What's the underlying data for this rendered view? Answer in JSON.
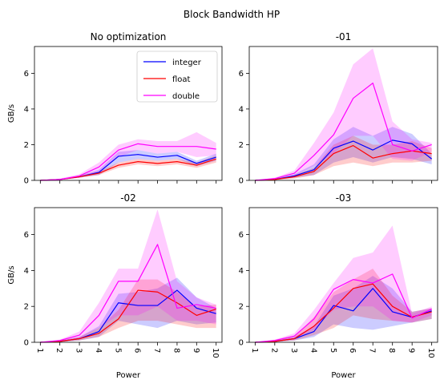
{
  "figure": {
    "suptitle": "Block Bandwidth HP"
  },
  "colors": {
    "integer": "#0000ff",
    "float": "#ff0000",
    "double": "#ff00ff"
  },
  "legend": {
    "placement": "top-right",
    "entries": [
      "integer",
      "float",
      "double"
    ]
  },
  "chart_data": [
    {
      "type": "line",
      "title": "No optimization",
      "xlabel": "",
      "ylabel": "GB/s",
      "x": [
        1,
        2,
        3,
        4,
        5,
        6,
        7,
        8,
        9,
        10
      ],
      "ylim": [
        0,
        7.5
      ],
      "yticks": [
        0,
        2,
        4,
        6
      ],
      "legend": true,
      "series": [
        {
          "name": "integer",
          "values": [
            0,
            0.05,
            0.2,
            0.45,
            1.35,
            1.45,
            1.3,
            1.4,
            0.95,
            1.3
          ],
          "lower": [
            0,
            0.02,
            0.15,
            0.3,
            1.0,
            1.2,
            1.1,
            1.2,
            0.8,
            1.1
          ],
          "upper": [
            0,
            0.08,
            0.25,
            0.6,
            1.6,
            1.7,
            1.5,
            1.6,
            1.1,
            1.5
          ]
        },
        {
          "name": "float",
          "values": [
            0,
            0.05,
            0.2,
            0.4,
            0.85,
            1.05,
            0.95,
            1.05,
            0.85,
            1.2
          ],
          "lower": [
            0,
            0.02,
            0.15,
            0.3,
            0.7,
            0.9,
            0.8,
            0.9,
            0.7,
            1.0
          ],
          "upper": [
            0,
            0.08,
            0.25,
            0.5,
            1.0,
            1.2,
            1.1,
            1.2,
            1.0,
            1.4
          ]
        },
        {
          "name": "double",
          "values": [
            0,
            0.05,
            0.25,
            0.75,
            1.7,
            2.05,
            1.9,
            1.9,
            1.9,
            1.75
          ],
          "lower": [
            0,
            0.02,
            0.15,
            0.5,
            1.3,
            1.7,
            1.5,
            1.6,
            1.3,
            1.4
          ],
          "upper": [
            0,
            0.1,
            0.35,
            1.0,
            2.0,
            2.3,
            2.2,
            2.2,
            2.7,
            2.1
          ]
        }
      ]
    },
    {
      "type": "line",
      "title": "-01",
      "xlabel": "",
      "ylabel": "",
      "x": [
        1,
        2,
        3,
        4,
        5,
        6,
        7,
        8,
        9,
        10
      ],
      "ylim": [
        0,
        7.5
      ],
      "yticks": [
        0,
        2,
        4,
        6
      ],
      "legend": false,
      "series": [
        {
          "name": "integer",
          "values": [
            0,
            0.05,
            0.25,
            0.6,
            1.8,
            2.2,
            1.7,
            2.25,
            2.05,
            1.2
          ],
          "lower": [
            0,
            0.02,
            0.15,
            0.3,
            1.0,
            1.3,
            1.0,
            1.3,
            1.2,
            0.9
          ],
          "upper": [
            0,
            0.1,
            0.35,
            0.9,
            2.3,
            3.0,
            2.5,
            3.0,
            2.6,
            1.5
          ]
        },
        {
          "name": "float",
          "values": [
            0,
            0.05,
            0.2,
            0.5,
            1.5,
            1.95,
            1.25,
            1.5,
            1.65,
            1.5
          ],
          "lower": [
            0,
            0.02,
            0.1,
            0.3,
            0.8,
            1.0,
            0.8,
            1.0,
            1.0,
            1.1
          ],
          "upper": [
            0,
            0.08,
            0.3,
            0.7,
            2.0,
            2.5,
            2.0,
            2.0,
            2.2,
            1.8
          ]
        },
        {
          "name": "double",
          "values": [
            0,
            0.1,
            0.4,
            1.4,
            2.55,
            4.6,
            5.45,
            2.0,
            1.65,
            2.0
          ],
          "lower": [
            0,
            0.05,
            0.25,
            0.8,
            1.5,
            2.5,
            2.5,
            1.2,
            1.1,
            1.6
          ],
          "upper": [
            0,
            0.15,
            0.55,
            2.1,
            3.8,
            6.5,
            7.4,
            3.3,
            2.3,
            2.1
          ]
        }
      ]
    },
    {
      "type": "line",
      "title": "-02",
      "xlabel": "Power",
      "ylabel": "GB/s",
      "x": [
        1,
        2,
        3,
        4,
        5,
        6,
        7,
        8,
        9,
        10
      ],
      "xticklabels": [
        "1",
        "2",
        "3",
        "4",
        "5",
        "6",
        "7",
        "8",
        "9",
        "10"
      ],
      "ylim": [
        0,
        7.5
      ],
      "yticks": [
        0,
        2,
        4,
        6
      ],
      "legend": false,
      "series": [
        {
          "name": "integer",
          "values": [
            0,
            0.05,
            0.2,
            0.6,
            2.2,
            2.05,
            2.05,
            2.9,
            1.9,
            1.6
          ],
          "lower": [
            0,
            0.02,
            0.1,
            0.3,
            1.2,
            1.0,
            0.8,
            1.2,
            1.0,
            1.1
          ],
          "upper": [
            0,
            0.1,
            0.3,
            0.9,
            2.7,
            2.8,
            3.0,
            3.6,
            2.5,
            1.9
          ]
        },
        {
          "name": "float",
          "values": [
            0,
            0.05,
            0.2,
            0.5,
            1.3,
            2.9,
            2.8,
            2.2,
            1.5,
            1.85
          ],
          "lower": [
            0,
            0.02,
            0.1,
            0.3,
            0.8,
            1.2,
            1.2,
            1.0,
            0.8,
            0.8
          ],
          "upper": [
            0,
            0.08,
            0.3,
            0.8,
            1.8,
            3.5,
            3.5,
            2.8,
            2.0,
            2.1
          ]
        },
        {
          "name": "double",
          "values": [
            0,
            0.1,
            0.4,
            1.5,
            3.4,
            3.4,
            5.45,
            1.9,
            2.1,
            1.9
          ],
          "lower": [
            0,
            0.05,
            0.2,
            0.8,
            1.5,
            1.5,
            2.0,
            1.2,
            1.2,
            1.0
          ],
          "upper": [
            0,
            0.15,
            0.6,
            2.2,
            4.1,
            4.1,
            7.4,
            3.4,
            2.5,
            2.1
          ]
        }
      ]
    },
    {
      "type": "line",
      "title": "-03",
      "xlabel": "Power",
      "ylabel": "",
      "x": [
        1,
        2,
        3,
        4,
        5,
        6,
        7,
        8,
        9,
        10
      ],
      "xticklabels": [
        "1",
        "2",
        "3",
        "4",
        "5",
        "6",
        "7",
        "8",
        "9",
        "10"
      ],
      "ylim": [
        0,
        7.5
      ],
      "yticks": [
        0,
        2,
        4,
        6
      ],
      "legend": false,
      "series": [
        {
          "name": "integer",
          "values": [
            0,
            0.05,
            0.2,
            0.6,
            2.05,
            1.75,
            3.0,
            1.7,
            1.4,
            1.75
          ],
          "lower": [
            0,
            0.02,
            0.1,
            0.3,
            1.0,
            0.8,
            0.7,
            0.9,
            1.1,
            1.3
          ],
          "upper": [
            0,
            0.1,
            0.3,
            0.9,
            2.6,
            3.0,
            3.7,
            3.0,
            1.7,
            1.9
          ]
        },
        {
          "name": "float",
          "values": [
            0,
            0.05,
            0.2,
            0.9,
            1.9,
            3.0,
            3.25,
            2.0,
            1.4,
            1.7
          ],
          "lower": [
            0,
            0.02,
            0.1,
            0.4,
            0.8,
            1.5,
            1.3,
            1.2,
            1.1,
            1.3
          ],
          "upper": [
            0,
            0.1,
            0.3,
            1.4,
            2.8,
            3.5,
            4.1,
            2.6,
            1.7,
            1.9
          ]
        },
        {
          "name": "double",
          "values": [
            0,
            0.1,
            0.35,
            1.3,
            2.95,
            3.5,
            3.3,
            3.8,
            1.35,
            1.85
          ],
          "lower": [
            0,
            0.05,
            0.2,
            0.7,
            1.8,
            2.0,
            2.0,
            1.2,
            1.1,
            1.5
          ],
          "upper": [
            0,
            0.15,
            0.5,
            1.8,
            3.3,
            4.7,
            5.0,
            6.5,
            1.6,
            2.0
          ]
        }
      ]
    }
  ]
}
